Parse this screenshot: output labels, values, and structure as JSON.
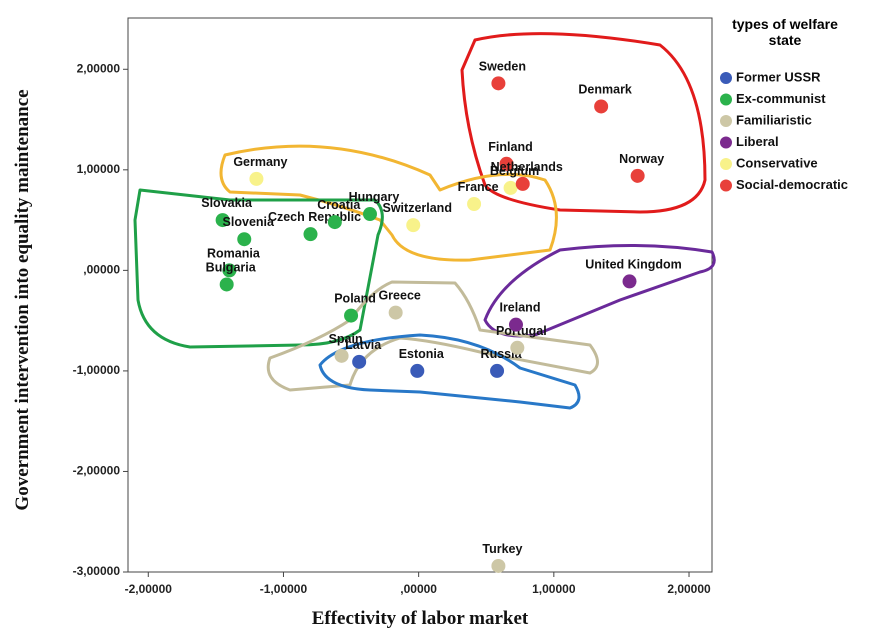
{
  "chart_data": {
    "type": "scatter",
    "xlabel": "Effectivity of labor market",
    "ylabel": "Government intervention into equality maintenance",
    "legend_title": "types of welfare state",
    "legend_position": "right",
    "xlim": [
      -2.15,
      2.17
    ],
    "ylim": [
      -3.0,
      2.51
    ],
    "xticks": [
      {
        "value": -2,
        "label": "-2,00000"
      },
      {
        "value": -1,
        "label": "-1,00000"
      },
      {
        "value": 0,
        "label": ",00000"
      },
      {
        "value": 1,
        "label": "1,00000"
      },
      {
        "value": 2,
        "label": "2,00000"
      }
    ],
    "yticks": [
      {
        "value": -3,
        "label": "-3,00000"
      },
      {
        "value": -2,
        "label": "-2,00000"
      },
      {
        "value": -1,
        "label": "-1,00000"
      },
      {
        "value": 0,
        "label": ",00000"
      },
      {
        "value": 1,
        "label": "1,00000"
      },
      {
        "value": 2,
        "label": "2,00000"
      }
    ],
    "series": [
      {
        "name": "Former USSR",
        "color": "#3a5bb8",
        "labels": [
          "Latvia",
          "Estonia",
          "Russia"
        ],
        "x": [
          -0.44,
          -0.01,
          0.58
        ],
        "y": [
          -0.91,
          -1.0,
          -1.0
        ]
      },
      {
        "name": "Ex-communist",
        "color": "#2bb24c",
        "labels": [
          "Slovakia",
          "Slovenia",
          "Czech Republic",
          "Croatia",
          "Hungary",
          "Romania",
          "Bulgaria",
          "Poland"
        ],
        "x": [
          -1.45,
          -1.29,
          -0.8,
          -0.62,
          -0.36,
          -1.4,
          -1.42,
          -0.5
        ],
        "y": [
          0.5,
          0.31,
          0.36,
          0.48,
          0.56,
          0.0,
          -0.14,
          -0.45
        ]
      },
      {
        "name": "Familiaristic",
        "color": "#cdc7a6",
        "labels": [
          "Spain",
          "Greece",
          "Portugal",
          "Turkey"
        ],
        "x": [
          -0.57,
          -0.17,
          0.73,
          0.59
        ],
        "y": [
          -0.85,
          -0.42,
          -0.77,
          -2.94
        ]
      },
      {
        "name": "Liberal",
        "color": "#7b2a8e",
        "labels": [
          "Ireland",
          "United Kingdom"
        ],
        "x": [
          0.72,
          1.56
        ],
        "y": [
          -0.54,
          -0.11
        ]
      },
      {
        "name": "Conservative",
        "color": "#f8f28a",
        "labels": [
          "Germany",
          "France",
          "Belgium",
          "Switzerland"
        ],
        "x": [
          -1.2,
          0.41,
          0.68,
          -0.04
        ],
        "y": [
          0.91,
          0.66,
          0.82,
          0.45
        ]
      },
      {
        "name": "Social-democratic",
        "color": "#e8403a",
        "labels": [
          "Sweden",
          "Denmark",
          "Finland",
          "Netherlands",
          "Norway"
        ],
        "x": [
          0.59,
          1.35,
          0.65,
          0.77,
          1.62
        ],
        "y": [
          1.86,
          1.63,
          1.06,
          0.86,
          0.94
        ]
      }
    ]
  }
}
